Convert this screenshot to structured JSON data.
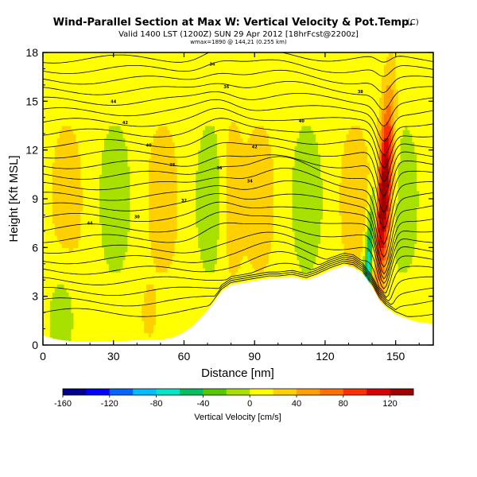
{
  "chart_data": {
    "type": "heatmap",
    "title": "Wind-Parallel Section at Max W: Vertical Velocity & Pot.Temp.",
    "title_mark": "(C)",
    "subtitle": "Valid 1400 LST (1200Z) SUN 29 Apr 2012 [18hrFcst@2200z]",
    "subtitle2": "wmax=1890 @ 144,21 (0.255 km)",
    "xlabel": "Distance [nm]",
    "ylabel": "Height [Kft MSL]",
    "xlim": [
      0,
      166
    ],
    "ylim": [
      0,
      18
    ],
    "xticks": [
      0,
      30,
      60,
      90,
      120,
      150
    ],
    "yticks": [
      0,
      3,
      6,
      9,
      12,
      15,
      18
    ],
    "colorbar": {
      "label": "Vertical Velocity [cm/s]",
      "ticks": [
        "-160",
        "-120",
        "-80",
        "-40",
        "0",
        "40",
        "80",
        "120"
      ],
      "range": [
        -160,
        140
      ],
      "colors": [
        "#00008b",
        "#0000ff",
        "#0066ff",
        "#00bfff",
        "#00e5c8",
        "#00c060",
        "#55c800",
        "#a8e000",
        "#ffff00",
        "#ffd000",
        "#ffa000",
        "#ff7000",
        "#ff3000",
        "#d80000",
        "#a00000"
      ]
    },
    "terrain": [
      [
        0,
        0.6
      ],
      [
        4,
        0.4
      ],
      [
        8,
        0.3
      ],
      [
        14,
        0.2
      ],
      [
        20,
        0.2
      ],
      [
        30,
        0.2
      ],
      [
        40,
        0.3
      ],
      [
        50,
        0.3
      ],
      [
        56,
        0.5
      ],
      [
        60,
        0.8
      ],
      [
        64,
        1.2
      ],
      [
        68,
        1.8
      ],
      [
        72,
        2.5
      ],
      [
        76,
        3.3
      ],
      [
        80,
        3.7
      ],
      [
        84,
        3.8
      ],
      [
        88,
        3.9
      ],
      [
        92,
        4.0
      ],
      [
        96,
        4.1
      ],
      [
        100,
        4.1
      ],
      [
        106,
        4.2
      ],
      [
        112,
        4.0
      ],
      [
        116,
        4.2
      ],
      [
        122,
        4.6
      ],
      [
        128,
        4.9
      ],
      [
        132,
        4.8
      ],
      [
        136,
        4.4
      ],
      [
        140,
        3.6
      ],
      [
        143,
        2.8
      ],
      [
        146,
        2.3
      ],
      [
        150,
        1.9
      ],
      [
        155,
        1.6
      ],
      [
        160,
        1.4
      ],
      [
        166,
        1.3
      ]
    ],
    "theta_labels": [
      "44",
      "42",
      "40",
      "38",
      "36",
      "34",
      "32",
      "30"
    ],
    "updraft": {
      "x_center_nm": 145,
      "peak_cm_s": 140,
      "peak_height_kft": 9.5
    },
    "downdraft": {
      "x_center_nm": 139,
      "min_cm_s": -90,
      "height_kft": 5
    }
  }
}
